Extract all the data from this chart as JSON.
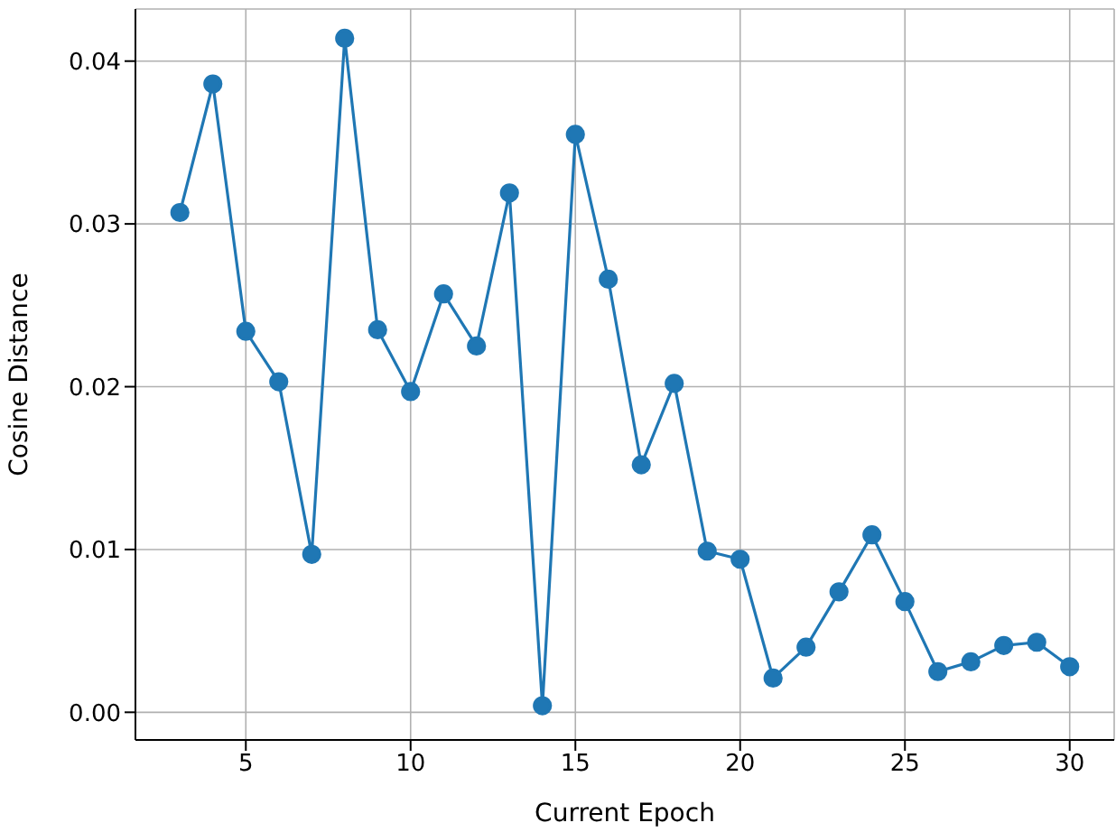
{
  "chart_data": {
    "type": "line",
    "xlabel": "Current Epoch",
    "ylabel": "Cosine Distance",
    "x": [
      3,
      4,
      5,
      6,
      7,
      8,
      9,
      10,
      11,
      12,
      13,
      14,
      15,
      16,
      17,
      18,
      19,
      20,
      21,
      22,
      23,
      24,
      25,
      26,
      27,
      28,
      29,
      30
    ],
    "series": [
      {
        "color": "#1f77b4",
        "values": [
          0.0307,
          0.0386,
          0.0234,
          0.0203,
          0.0097,
          0.0414,
          0.0235,
          0.0197,
          0.0257,
          0.0225,
          0.0319,
          0.0004,
          0.0355,
          0.0266,
          0.0152,
          0.0202,
          0.0099,
          0.0094,
          0.0021,
          0.004,
          0.0074,
          0.0109,
          0.0068,
          0.0025,
          0.0031,
          0.0041,
          0.0043,
          0.0028
        ]
      }
    ],
    "xlim": [
      1.65,
      31.35
    ],
    "ylim": [
      -0.0017,
      0.0432
    ],
    "xticks": [
      5,
      10,
      15,
      20,
      25,
      30
    ],
    "yticks": [
      {
        "value": 0,
        "label": "0.00"
      },
      {
        "value": 0.01,
        "label": "0.01"
      },
      {
        "value": 0.02,
        "label": "0.02"
      },
      {
        "value": 0.03,
        "label": "0.03"
      },
      {
        "value": 0.04,
        "label": "0.04"
      }
    ],
    "grid": true,
    "marker": "circle",
    "line_style": "solid"
  }
}
